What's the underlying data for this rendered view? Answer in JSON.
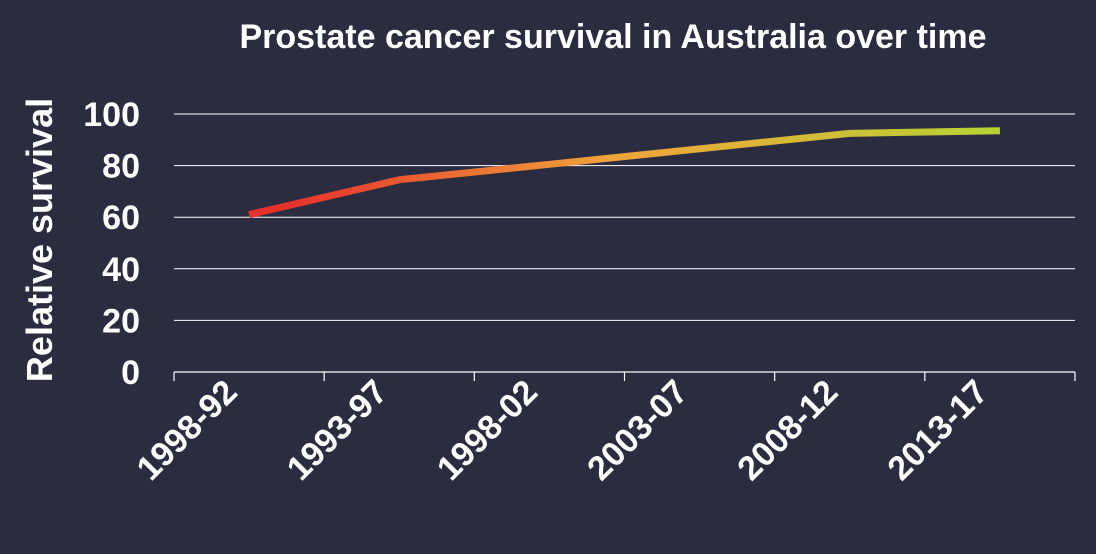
{
  "chart_data": {
    "type": "line",
    "title": "Prostate cancer survival in Australia over time",
    "xlabel": "",
    "ylabel": "Relative survival",
    "categories": [
      "1998-92",
      "1993-97",
      "1998-02",
      "2003-07",
      "2008-12",
      "2013-17"
    ],
    "yticks": [
      "0",
      "20",
      "40",
      "60",
      "80",
      "100"
    ],
    "ylim": [
      0,
      100
    ],
    "grid": true,
    "series": [
      {
        "values": [
          61,
          74.5,
          80.5,
          86.5,
          92.5,
          93.5
        ]
      }
    ],
    "colors": {
      "background": "#2b2c40",
      "text": "#ffffff",
      "grid": "#ffffff",
      "line_start": "#e6312c",
      "line_mid": "#f0a43a",
      "line_end": "#b5d334"
    }
  }
}
